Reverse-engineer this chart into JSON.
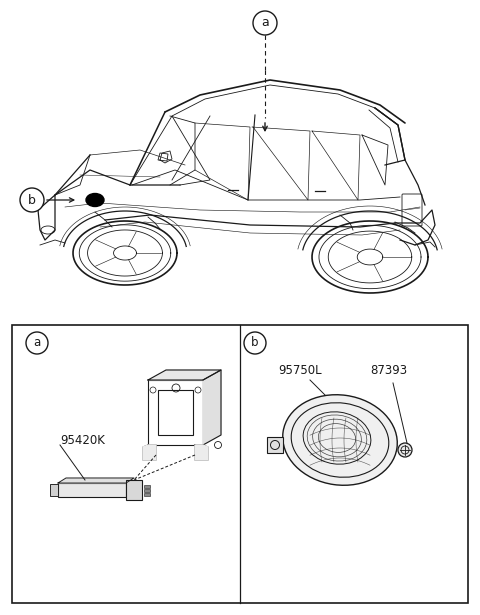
{
  "bg_color": "#ffffff",
  "part_a_number": "95420K",
  "part_b_number1": "95750L",
  "part_b_number2": "87393",
  "line_color": "#1a1a1a",
  "gray_fill": "#d0d0d0"
}
